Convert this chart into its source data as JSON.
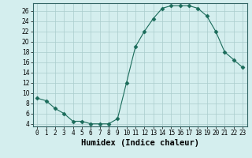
{
  "x": [
    0,
    1,
    2,
    3,
    4,
    5,
    6,
    7,
    8,
    9,
    10,
    11,
    12,
    13,
    14,
    15,
    16,
    17,
    18,
    19,
    20,
    21,
    22,
    23
  ],
  "y": [
    9,
    8.5,
    7,
    6,
    4.5,
    4.5,
    4,
    4,
    4,
    5,
    12,
    19,
    22,
    24.5,
    26.5,
    27,
    27,
    27,
    26.5,
    25,
    22,
    18,
    16.5,
    15
  ],
  "line_color": "#1a6b5a",
  "marker": "D",
  "marker_size": 2.5,
  "bg_color": "#d4eeee",
  "grid_color": "#aacccc",
  "xlabel": "Humidex (Indice chaleur)",
  "ylim": [
    3.5,
    27.5
  ],
  "xlim": [
    -0.5,
    23.5
  ],
  "yticks": [
    4,
    6,
    8,
    10,
    12,
    14,
    16,
    18,
    20,
    22,
    24,
    26
  ],
  "xtick_labels": [
    "0",
    "1",
    "2",
    "3",
    "4",
    "5",
    "6",
    "7",
    "8",
    "9",
    "10",
    "11",
    "12",
    "13",
    "14",
    "15",
    "16",
    "17",
    "18",
    "19",
    "20",
    "21",
    "22",
    "23"
  ],
  "tick_fontsize": 5.5,
  "xlabel_fontsize": 7.5
}
